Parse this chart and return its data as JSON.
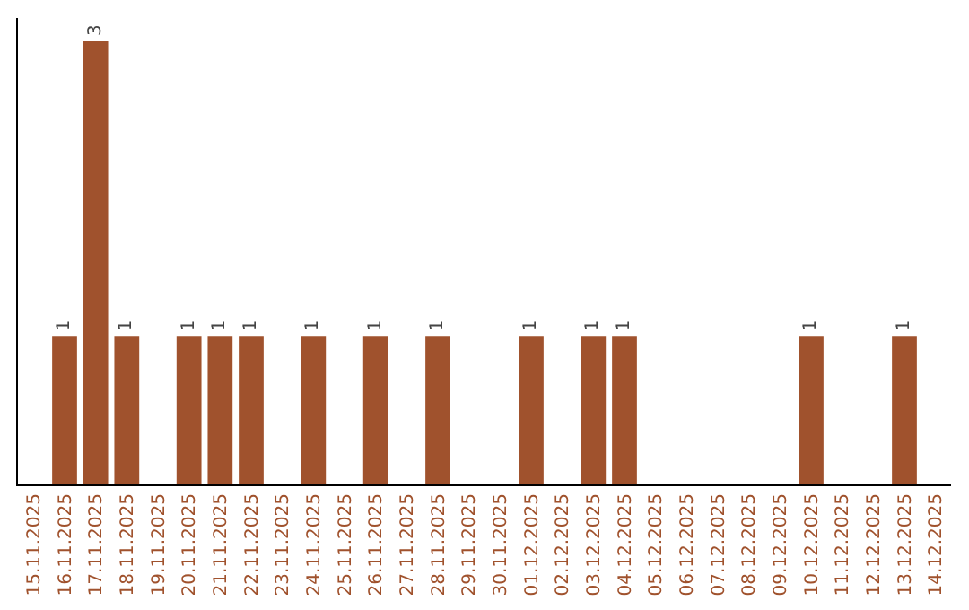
{
  "chart_data": {
    "type": "bar",
    "categories": [
      "15.11.2025",
      "16.11.2025",
      "17.11.2025",
      "18.11.2025",
      "19.11.2025",
      "20.11.2025",
      "21.11.2025",
      "22.11.2025",
      "23.11.2025",
      "24.11.2025",
      "25.11.2025",
      "26.11.2025",
      "27.11.2025",
      "28.11.2025",
      "29.11.2025",
      "30.11.2025",
      "01.12.2025",
      "02.12.2025",
      "03.12.2025",
      "04.12.2025",
      "05.12.2025",
      "06.12.2025",
      "07.12.2025",
      "08.12.2025",
      "09.12.2025",
      "10.12.2025",
      "11.12.2025",
      "12.12.2025",
      "13.12.2025",
      "14.12.2025"
    ],
    "values": [
      0,
      1,
      3,
      1,
      0,
      1,
      1,
      1,
      0,
      1,
      0,
      1,
      0,
      1,
      0,
      0,
      1,
      0,
      1,
      1,
      0,
      0,
      0,
      0,
      0,
      1,
      0,
      0,
      1,
      0
    ],
    "value_labels": [
      null,
      "1",
      "3",
      "1",
      null,
      "1",
      "1",
      "1",
      null,
      "1",
      null,
      "1",
      null,
      "1",
      null,
      null,
      "1",
      null,
      "1",
      "1",
      null,
      null,
      null,
      null,
      null,
      "1",
      null,
      null,
      "1",
      null
    ],
    "color": "#a0522d",
    "grid": false,
    "legend": false,
    "tick_labels": "x"
  }
}
